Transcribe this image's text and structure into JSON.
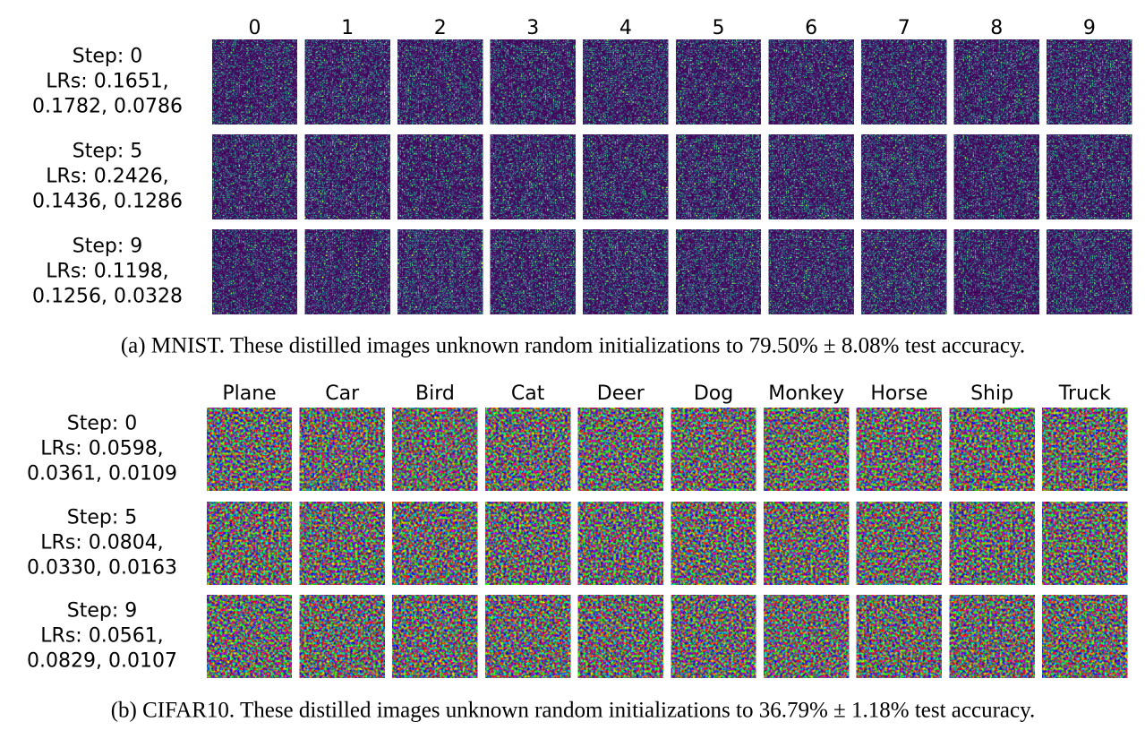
{
  "panels": [
    {
      "columns": [
        "0",
        "1",
        "2",
        "3",
        "4",
        "5",
        "6",
        "7",
        "8",
        "9"
      ],
      "rows": [
        {
          "lines": [
            "Step: 0",
            "LRs: 0.1651,",
            "0.1782, 0.0786"
          ]
        },
        {
          "lines": [
            "Step: 5",
            "LRs: 0.2426,",
            "0.1436, 0.1286"
          ]
        },
        {
          "lines": [
            "Step: 9",
            "LRs: 0.1198,",
            "0.1256, 0.0328"
          ]
        }
      ],
      "caption": "(a) MNIST. These distilled images unknown random initializations to 79.50% ± 8.08% test accuracy."
    },
    {
      "columns": [
        "Plane",
        "Car",
        "Bird",
        "Cat",
        "Deer",
        "Dog",
        "Monkey",
        "Horse",
        "Ship",
        "Truck"
      ],
      "rows": [
        {
          "lines": [
            "Step: 0",
            "LRs: 0.0598,",
            "0.0361, 0.0109"
          ]
        },
        {
          "lines": [
            "Step: 5",
            "LRs: 0.0804,",
            "0.0330, 0.0163"
          ]
        },
        {
          "lines": [
            "Step: 9",
            "LRs: 0.0561,",
            "0.0829, 0.0107"
          ]
        }
      ],
      "caption": "(b) CIFAR10. These distilled images unknown random initializations to 36.79% ± 1.18% test accuracy."
    }
  ]
}
